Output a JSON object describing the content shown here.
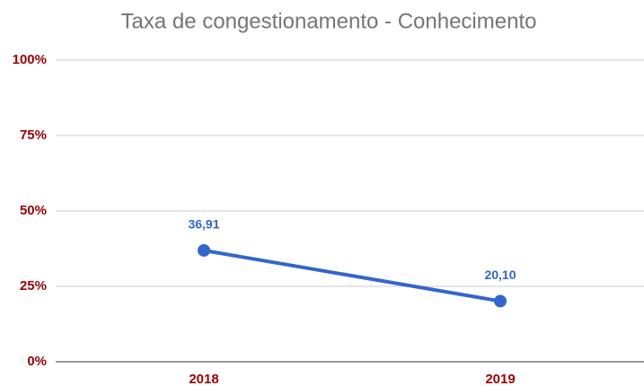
{
  "chart_data": {
    "type": "line",
    "title": "Taxa de congestionamento - Conhecimento",
    "categories": [
      "2018",
      "2019"
    ],
    "values": [
      36.91,
      20.1
    ],
    "value_labels": [
      "36,91",
      "20,10"
    ],
    "color": "#3366cc",
    "ylim": [
      0,
      100
    ],
    "yticks": [
      {
        "value": 0,
        "label": "0%"
      },
      {
        "value": 25,
        "label": "25%"
      },
      {
        "value": 50,
        "label": "50%"
      },
      {
        "value": 75,
        "label": "75%"
      },
      {
        "value": 100,
        "label": "100%"
      }
    ],
    "grid": true
  }
}
